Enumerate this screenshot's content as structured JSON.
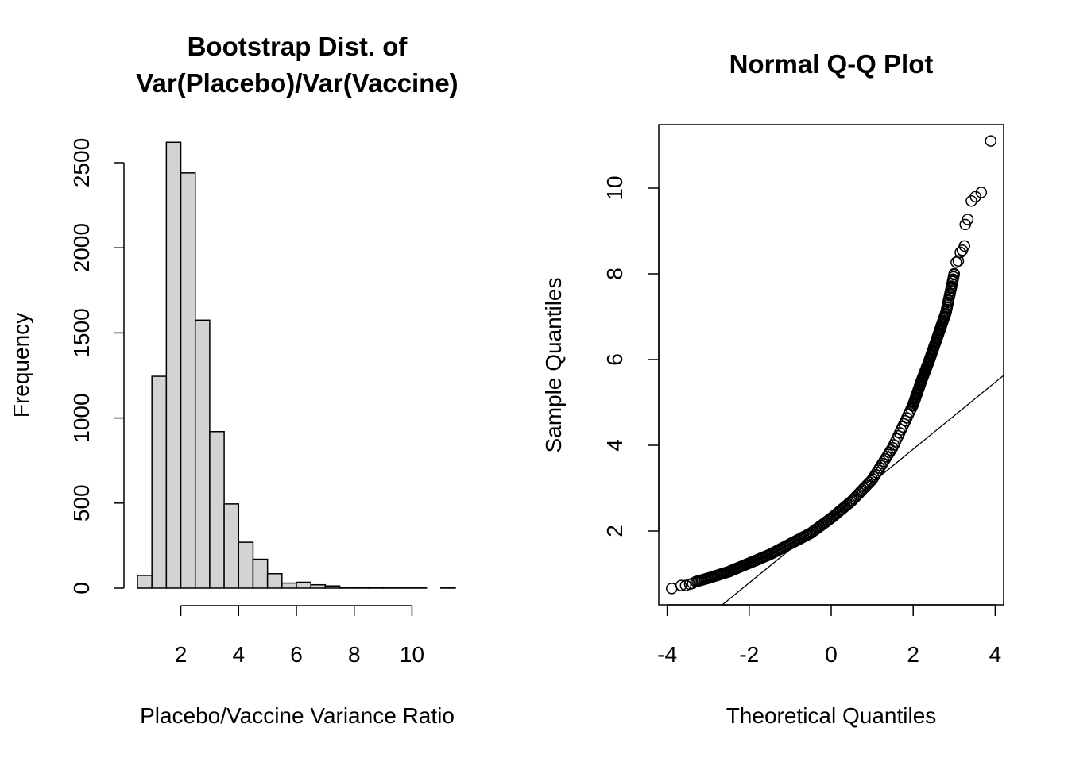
{
  "chart_data": [
    {
      "type": "bar",
      "title_lines": [
        "Bootstrap Dist. of",
        "Var(Placebo)/Var(Vaccine)"
      ],
      "xlabel": "Placebo/Vaccine Variance Ratio",
      "ylabel": "Frequency",
      "bin_edges": [
        0.5,
        1,
        1.5,
        2,
        2.5,
        3,
        3.5,
        4,
        4.5,
        5,
        5.5,
        6,
        6.5,
        7,
        7.5,
        8,
        8.5,
        9,
        9.5,
        10,
        10.5,
        11,
        11.5
      ],
      "values": [
        75,
        1245,
        2620,
        2440,
        1575,
        920,
        495,
        270,
        170,
        85,
        30,
        35,
        20,
        13,
        5,
        5,
        2,
        1,
        1,
        1,
        0,
        1
      ],
      "xlim": [
        0.5,
        11.5
      ],
      "ylim": [
        0,
        2620
      ],
      "xticks": [
        2,
        4,
        6,
        8,
        10
      ],
      "yticks": [
        0,
        500,
        1000,
        1500,
        2000,
        2500
      ],
      "bar_color": "#d3d3d3",
      "border_color": "#000000"
    },
    {
      "type": "scatter",
      "title": "Normal Q-Q Plot",
      "xlabel": "Theoretical Quantiles",
      "ylabel": "Sample Quantiles",
      "xlim": [
        -4.2,
        4.2
      ],
      "ylim": [
        0.3,
        11.5
      ],
      "xticks": [
        -4,
        -2,
        0,
        2,
        4
      ],
      "yticks": [
        2,
        4,
        6,
        8,
        10
      ],
      "qq_line": {
        "slope": 0.78,
        "intercept": 2.35
      },
      "tail_points": [
        {
          "x": -3.89,
          "y": 0.66
        },
        {
          "x": -3.66,
          "y": 0.73
        },
        {
          "x": -3.55,
          "y": 0.73
        },
        {
          "x": -3.45,
          "y": 0.76
        },
        {
          "x": -3.38,
          "y": 0.78
        },
        {
          "x": 3.05,
          "y": 8.27
        },
        {
          "x": 3.1,
          "y": 8.3
        },
        {
          "x": 3.15,
          "y": 8.5
        },
        {
          "x": 3.2,
          "y": 8.55
        },
        {
          "x": 3.25,
          "y": 8.65
        },
        {
          "x": 3.27,
          "y": 9.15
        },
        {
          "x": 3.33,
          "y": 9.27
        },
        {
          "x": 3.42,
          "y": 9.7
        },
        {
          "x": 3.52,
          "y": 9.8
        },
        {
          "x": 3.66,
          "y": 9.9
        },
        {
          "x": 3.89,
          "y": 11.1
        }
      ],
      "quantile_curve": {
        "x": [
          -3.3,
          -3.0,
          -2.5,
          -2.0,
          -1.5,
          -1.0,
          -0.5,
          0.0,
          0.5,
          1.0,
          1.5,
          2.0,
          2.2,
          2.4,
          2.6,
          2.8,
          3.0
        ],
        "y": [
          0.82,
          0.9,
          1.05,
          1.25,
          1.45,
          1.7,
          1.95,
          2.3,
          2.7,
          3.2,
          3.95,
          4.95,
          5.5,
          6.0,
          6.55,
          7.1,
          8.0
        ]
      },
      "point_color": "#000000"
    }
  ]
}
